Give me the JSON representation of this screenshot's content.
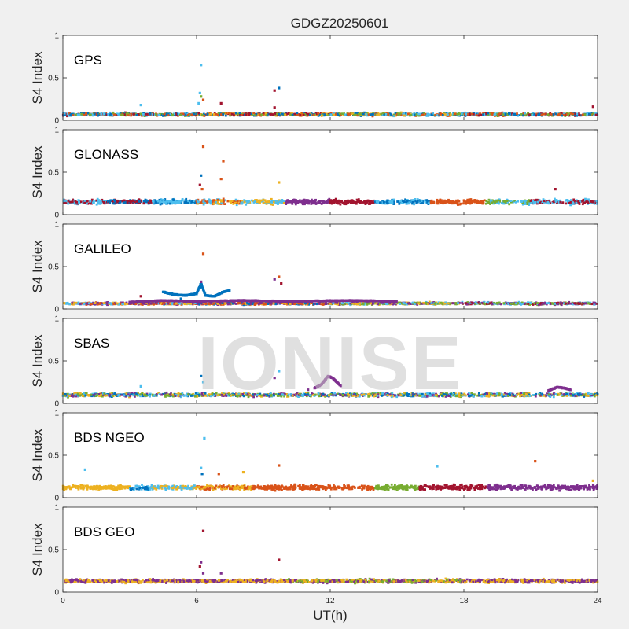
{
  "figure": {
    "title": "GDGZ20250601",
    "watermark": "IONISE"
  },
  "chart_data": {
    "type": "scatter",
    "title": "GDGZ20250601",
    "xlabel": "UT(h)",
    "ylabel": "S4 Index",
    "xlim": [
      0,
      24
    ],
    "ylim": [
      0,
      1
    ],
    "xticks": [
      0,
      6,
      12,
      18,
      24
    ],
    "yticks": [
      0,
      0.5,
      1
    ],
    "xtick_labels": [
      "0",
      "6",
      "12",
      "18",
      "24"
    ],
    "ytick_labels": [
      "0",
      "0.5",
      "1"
    ],
    "series_colors": [
      "#0072BD",
      "#D95319",
      "#EDB120",
      "#7E2F8E",
      "#77AC30",
      "#4DBEEE",
      "#A2142F"
    ],
    "panels": [
      {
        "label": "GPS",
        "ylabel": "S4 Index",
        "baseline": 0.07,
        "spread": 0.025,
        "color_schedule": [
          [
            0,
            6,
            [
              "#0072BD",
              "#77AC30",
              "#A2142F",
              "#D95319",
              "#4DBEEE"
            ]
          ],
          [
            6,
            12,
            [
              "#A2142F",
              "#0072BD",
              "#77AC30",
              "#EDB120",
              "#D95319"
            ]
          ],
          [
            12,
            18,
            [
              "#EDB120",
              "#77AC30",
              "#0072BD",
              "#D95319",
              "#4DBEEE"
            ]
          ],
          [
            18,
            24,
            [
              "#D95319",
              "#0072BD",
              "#77AC30",
              "#4DBEEE",
              "#A2142F"
            ]
          ]
        ],
        "outliers": [
          [
            6.2,
            0.65,
            "#4DBEEE"
          ],
          [
            6.15,
            0.32,
            "#4DBEEE"
          ],
          [
            6.2,
            0.28,
            "#77AC30"
          ],
          [
            6.1,
            0.2,
            "#4DBEEE"
          ],
          [
            6.3,
            0.24,
            "#D95319"
          ],
          [
            7.1,
            0.2,
            "#A2142F"
          ],
          [
            9.5,
            0.35,
            "#A2142F"
          ],
          [
            9.7,
            0.38,
            "#0072BD"
          ],
          [
            9.5,
            0.15,
            "#A2142F"
          ],
          [
            3.5,
            0.18,
            "#4DBEEE"
          ],
          [
            23.8,
            0.16,
            "#A2142F"
          ]
        ]
      },
      {
        "label": "GLONASS",
        "ylabel": "S4 Index",
        "baseline": 0.15,
        "spread": 0.04,
        "color_schedule": [
          [
            0,
            2,
            [
              "#4DBEEE",
              "#A2142F"
            ]
          ],
          [
            2,
            4,
            [
              "#A2142F",
              "#0072BD"
            ]
          ],
          [
            4,
            6,
            [
              "#0072BD",
              "#4DBEEE"
            ]
          ],
          [
            6,
            8,
            [
              "#D95319",
              "#4DBEEE",
              "#EDB120"
            ]
          ],
          [
            8,
            10,
            [
              "#EDB120",
              "#4DBEEE"
            ]
          ],
          [
            10,
            12,
            [
              "#7E2F8E"
            ]
          ],
          [
            12,
            14,
            [
              "#A2142F"
            ]
          ],
          [
            14,
            16.5,
            [
              "#0072BD",
              "#4DBEEE"
            ]
          ],
          [
            16.5,
            19,
            [
              "#D95319"
            ]
          ],
          [
            19,
            21,
            [
              "#77AC30",
              "#4DBEEE"
            ]
          ],
          [
            21,
            24,
            [
              "#A2142F",
              "#4DBEEE"
            ]
          ]
        ],
        "outliers": [
          [
            6.3,
            0.8,
            "#D95319"
          ],
          [
            6.2,
            0.46,
            "#0072BD"
          ],
          [
            6.15,
            0.35,
            "#A2142F"
          ],
          [
            6.25,
            0.3,
            "#D95319"
          ],
          [
            7.2,
            0.63,
            "#D95319"
          ],
          [
            7.1,
            0.42,
            "#D95319"
          ],
          [
            9.7,
            0.38,
            "#EDB120"
          ],
          [
            22.1,
            0.3,
            "#A2142F"
          ]
        ]
      },
      {
        "label": "GALILEO",
        "ylabel": "S4 Index",
        "baseline": 0.065,
        "spread": 0.02,
        "color_schedule": [
          [
            0,
            6,
            [
              "#D95319",
              "#EDB120",
              "#7E2F8E",
              "#4DBEEE"
            ]
          ],
          [
            6,
            12,
            [
              "#7E2F8E",
              "#EDB120",
              "#0072BD",
              "#D95319"
            ]
          ],
          [
            12,
            18,
            [
              "#7E2F8E",
              "#77AC30",
              "#4DBEEE",
              "#EDB120"
            ]
          ],
          [
            18,
            24,
            [
              "#77AC30",
              "#4DBEEE",
              "#7E2F8E",
              "#A2142F"
            ]
          ]
        ],
        "outliers": [
          [
            6.3,
            0.65,
            "#D95319"
          ],
          [
            6.2,
            0.32,
            "#7E2F8E"
          ],
          [
            6.15,
            0.25,
            "#0072BD"
          ],
          [
            9.5,
            0.35,
            "#7E2F8E"
          ],
          [
            9.7,
            0.38,
            "#D95319"
          ],
          [
            9.8,
            0.3,
            "#A2142F"
          ],
          [
            3.5,
            0.15,
            "#A2142F"
          ],
          [
            5.3,
            0.12,
            "#0072BD"
          ]
        ],
        "trails": [
          {
            "color": "#0072BD",
            "points": [
              [
                4.5,
                0.2
              ],
              [
                5.0,
                0.17
              ],
              [
                5.5,
                0.16
              ],
              [
                6.0,
                0.18
              ],
              [
                6.2,
                0.3
              ],
              [
                6.4,
                0.16
              ],
              [
                6.8,
                0.15
              ],
              [
                7.2,
                0.2
              ],
              [
                7.5,
                0.22
              ]
            ]
          },
          {
            "color": "#7E2F8E",
            "points": [
              [
                3.0,
                0.08
              ],
              [
                4.5,
                0.1
              ],
              [
                6.0,
                0.09
              ],
              [
                8.0,
                0.1
              ],
              [
                10.0,
                0.09
              ],
              [
                13.0,
                0.1
              ],
              [
                15.0,
                0.09
              ]
            ]
          }
        ]
      },
      {
        "label": "SBAS",
        "ylabel": "S4 Index",
        "baseline": 0.1,
        "spread": 0.03,
        "color_schedule": [
          [
            0,
            24,
            [
              "#7E2F8E",
              "#4DBEEE",
              "#77AC30",
              "#EDB120",
              "#0072BD"
            ]
          ]
        ],
        "outliers": [
          [
            6.2,
            0.32,
            "#0072BD"
          ],
          [
            6.3,
            0.25,
            "#4DBEEE"
          ],
          [
            3.5,
            0.2,
            "#4DBEEE"
          ],
          [
            9.7,
            0.38,
            "#4DBEEE"
          ],
          [
            9.5,
            0.3,
            "#7E2F8E"
          ],
          [
            11.0,
            0.16,
            "#7E2F8E"
          ]
        ],
        "trails": [
          {
            "color": "#7E2F8E",
            "points": [
              [
                11.3,
                0.18
              ],
              [
                11.6,
                0.22
              ],
              [
                11.9,
                0.32
              ],
              [
                12.1,
                0.3
              ],
              [
                12.3,
                0.25
              ],
              [
                12.5,
                0.2
              ]
            ]
          },
          {
            "color": "#7E2F8E",
            "points": [
              [
                21.8,
                0.15
              ],
              [
                22.2,
                0.19
              ],
              [
                22.5,
                0.18
              ],
              [
                22.8,
                0.16
              ]
            ]
          }
        ]
      },
      {
        "label": "BDS NGEO",
        "ylabel": "S4 Index",
        "baseline": 0.12,
        "spread": 0.04,
        "color_schedule": [
          [
            0,
            3,
            [
              "#EDB120"
            ]
          ],
          [
            3,
            4,
            [
              "#0072BD",
              "#4DBEEE"
            ]
          ],
          [
            4,
            6,
            [
              "#4DBEEE",
              "#EDB120"
            ]
          ],
          [
            6,
            8.5,
            [
              "#D95319",
              "#EDB120"
            ]
          ],
          [
            8.5,
            14,
            [
              "#D95319"
            ]
          ],
          [
            14,
            16,
            [
              "#77AC30"
            ]
          ],
          [
            16,
            19,
            [
              "#A2142F"
            ]
          ],
          [
            19,
            24,
            [
              "#7E2F8E"
            ]
          ]
        ],
        "outliers": [
          [
            6.35,
            0.7,
            "#4DBEEE"
          ],
          [
            6.2,
            0.35,
            "#4DBEEE"
          ],
          [
            6.25,
            0.28,
            "#0072BD"
          ],
          [
            9.7,
            0.38,
            "#D95319"
          ],
          [
            8.1,
            0.3,
            "#EDB120"
          ],
          [
            7.0,
            0.28,
            "#D95319"
          ],
          [
            1.0,
            0.33,
            "#4DBEEE"
          ],
          [
            16.8,
            0.37,
            "#4DBEEE"
          ],
          [
            21.2,
            0.43,
            "#D95319"
          ],
          [
            23.8,
            0.2,
            "#EDB120"
          ]
        ]
      },
      {
        "label": "BDS GEO",
        "ylabel": "S4 Index",
        "baseline": 0.13,
        "spread": 0.03,
        "color_schedule": [
          [
            0,
            9.7,
            [
              "#7E2F8E",
              "#EDB120"
            ]
          ],
          [
            9.7,
            18,
            [
              "#77AC30",
              "#7E2F8E",
              "#EDB120"
            ]
          ],
          [
            18,
            24,
            [
              "#7E2F8E",
              "#EDB120"
            ]
          ]
        ],
        "outliers": [
          [
            6.3,
            0.72,
            "#A2142F"
          ],
          [
            6.2,
            0.35,
            "#7E2F8E"
          ],
          [
            6.15,
            0.3,
            "#A2142F"
          ],
          [
            6.3,
            0.22,
            "#7E2F8E"
          ],
          [
            9.7,
            0.38,
            "#A2142F"
          ],
          [
            7.1,
            0.22,
            "#7E2F8E"
          ]
        ]
      }
    ]
  }
}
